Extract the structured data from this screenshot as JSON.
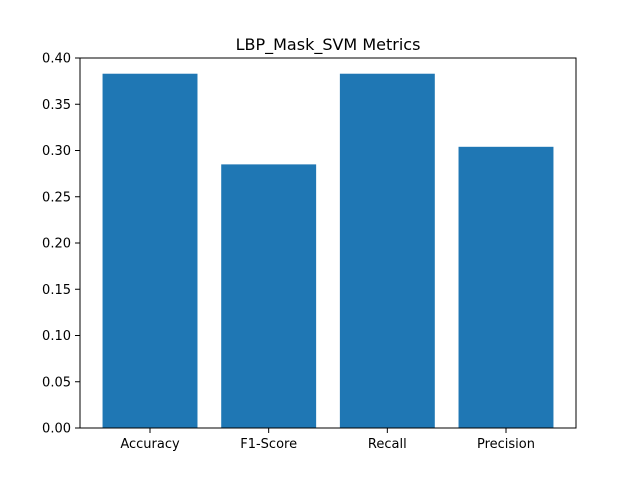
{
  "chart_data": {
    "type": "bar",
    "title": "LBP_Mask_SVM Metrics",
    "xlabel": "",
    "ylabel": "",
    "categories": [
      "Accuracy",
      "F1-Score",
      "Recall",
      "Precision"
    ],
    "values": [
      0.383,
      0.285,
      0.383,
      0.304
    ],
    "ylim": [
      0,
      0.4
    ],
    "yticks": [
      "0.00",
      "0.05",
      "0.10",
      "0.15",
      "0.20",
      "0.25",
      "0.30",
      "0.35",
      "0.40"
    ],
    "grid": false,
    "legend": "none",
    "bar_color": "#1f77b4"
  }
}
